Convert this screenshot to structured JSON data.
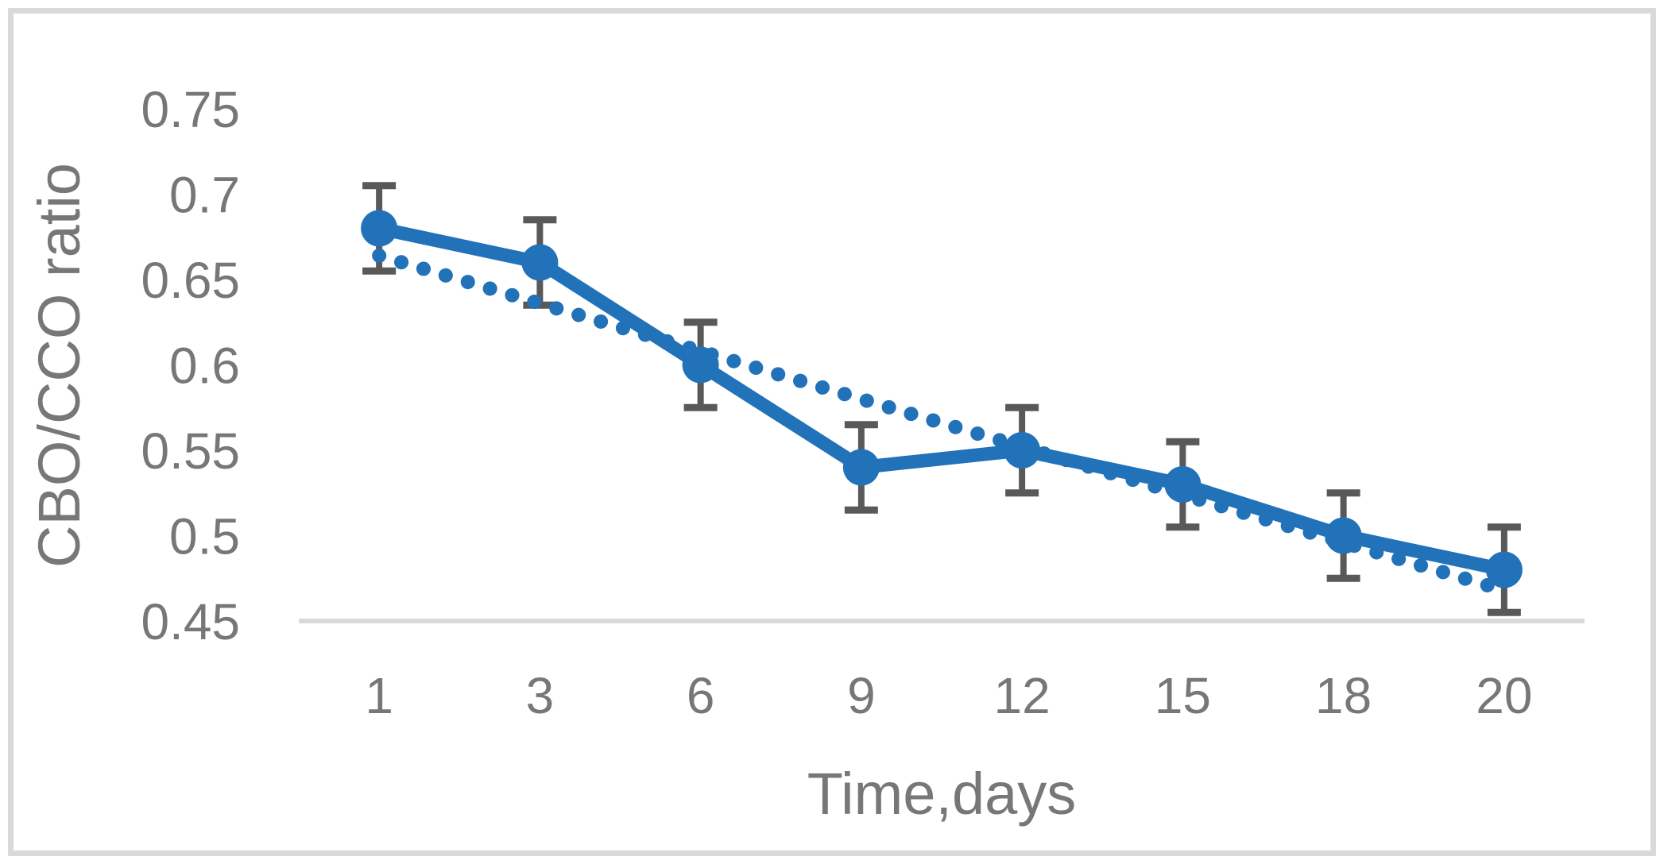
{
  "chart_data": {
    "type": "line",
    "title": "",
    "xlabel": "Time,days",
    "ylabel": "CBO/CCO ratio",
    "categories": [
      "1",
      "3",
      "6",
      "9",
      "12",
      "15",
      "18",
      "20"
    ],
    "series": [
      {
        "name": "CBO/CCO ratio",
        "style": "solid-line-with-circle-markers",
        "values": [
          0.68,
          0.66,
          0.6,
          0.54,
          0.55,
          0.53,
          0.5,
          0.48
        ],
        "errors": [
          0.025,
          0.025,
          0.025,
          0.025,
          0.025,
          0.025,
          0.025,
          0.025
        ]
      }
    ],
    "trendline": {
      "type": "linear",
      "style": "dotted",
      "start_value": 0.664,
      "end_value": 0.468
    },
    "ylim": [
      0.45,
      0.75
    ],
    "ytick_step": 0.05,
    "yticks": [
      "0.75",
      "0.7",
      "0.65",
      "0.6",
      "0.55",
      "0.5",
      "0.45"
    ],
    "xticks": [
      "1",
      "3",
      "6",
      "9",
      "12",
      "15",
      "18",
      "20"
    ],
    "grid": false,
    "legend_position": "none",
    "colors": {
      "series": "#2272B9",
      "trendline": "#2272B9",
      "error_bar": "#595959",
      "tick_text": "#777777",
      "axis_title_text": "#777777",
      "axis_line": "#D9D9D9",
      "frame_border": "#D9D9D9",
      "background": "#FFFFFF"
    }
  }
}
